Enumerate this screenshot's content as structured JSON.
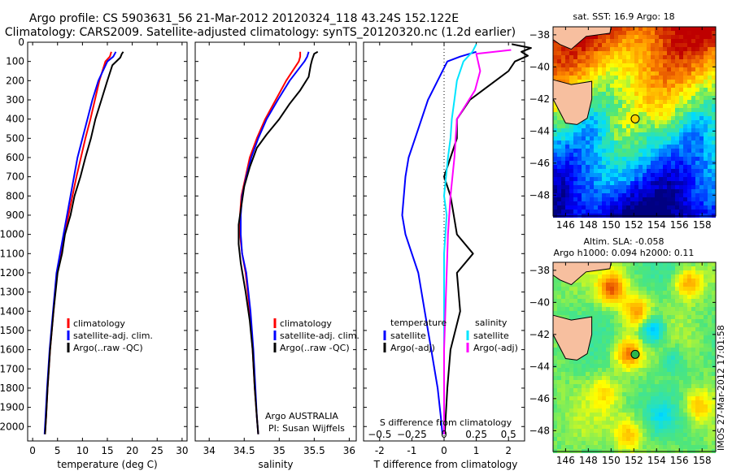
{
  "header": {
    "line1": "Argo profile: CS 5903631_56 21-Mar-2012 20120324_118 43.24S 152.122E",
    "line2": "Climatology: CARS2009. Satellite-adjusted climatology: synTS_20120320.nc (1.2d earlier)"
  },
  "side_stamp": "IMOS 27-Mar-2012 17:01:58",
  "colors": {
    "climatology": "#ff0000",
    "satellite": "#0000ff",
    "argo": "#000000",
    "salinity_satellite": "#00e5ff",
    "salinity_argo": "#ff00ff",
    "zero_line": "#000000"
  },
  "maps": [
    {
      "title": "sat. SST: 16.9 Argo: 18",
      "lon_ticks": [
        146,
        148,
        150,
        152,
        154,
        156,
        158
      ],
      "lat_ticks": [
        -38,
        -40,
        -42,
        -44,
        -46,
        -48
      ],
      "float": {
        "lon": 152.12,
        "lat": -43.24,
        "color": "#ffd700"
      }
    },
    {
      "title_line1": "Altim. SLA: -0.058",
      "title_line2": "Argo h1000: 0.094 h2000: 0.11",
      "lon_ticks": [
        146,
        148,
        150,
        152,
        154,
        156,
        158
      ],
      "lat_ticks": [
        -38,
        -40,
        -42,
        -44,
        -46,
        -48
      ],
      "float": {
        "lon": 152.12,
        "lat": -43.24,
        "color": "#2db84d"
      }
    }
  ],
  "chart_data": [
    {
      "type": "line",
      "xlabel": "temperature (deg C)",
      "xlim": [
        -1,
        31
      ],
      "xticks": [
        0,
        5,
        10,
        15,
        20,
        25,
        30
      ],
      "ylim": [
        2075,
        0
      ],
      "yticks": [
        0,
        100,
        200,
        300,
        400,
        500,
        600,
        700,
        800,
        900,
        1000,
        1100,
        1200,
        1300,
        1400,
        1500,
        1600,
        1700,
        1800,
        1900,
        2000
      ],
      "legend": [
        "climatology",
        "satellite-adj. clim.",
        "Argo(..raw -QC)"
      ],
      "series": [
        {
          "name": "climatology",
          "color": "#ff0000",
          "x": [
            15.8,
            15.5,
            14.6,
            13.4,
            12.5,
            11.6,
            10.6,
            9.7,
            8.8,
            8.0,
            7.2,
            6.4,
            5.7,
            4.9,
            4.2,
            3.5,
            3.0,
            2.7,
            2.5
          ],
          "y": [
            50,
            75,
            100,
            200,
            300,
            400,
            500,
            600,
            700,
            800,
            900,
            1000,
            1100,
            1200,
            1400,
            1600,
            1800,
            1950,
            2040
          ]
        },
        {
          "name": "satellite-adj. clim.",
          "color": "#0000ff",
          "x": [
            16.7,
            16.2,
            15.0,
            13.2,
            12.0,
            11.0,
            10.0,
            9.0,
            8.3,
            7.6,
            6.9,
            6.2,
            5.5,
            4.8,
            4.1,
            3.4,
            2.9,
            2.6,
            2.4
          ],
          "y": [
            50,
            75,
            100,
            200,
            300,
            400,
            500,
            600,
            700,
            800,
            900,
            1000,
            1100,
            1200,
            1400,
            1600,
            1800,
            1950,
            2040
          ]
        },
        {
          "name": "Argo(..raw -QC)",
          "color": "#000000",
          "x": [
            18.2,
            17.9,
            17.6,
            16.0,
            15.0,
            13.8,
            12.6,
            11.7,
            10.6,
            9.6,
            8.4,
            7.6,
            6.5,
            5.9,
            5.0,
            4.2,
            3.5,
            3.0,
            2.7,
            2.5
          ],
          "y": [
            50,
            60,
            80,
            120,
            200,
            300,
            400,
            500,
            600,
            700,
            800,
            900,
            1000,
            1100,
            1200,
            1400,
            1600,
            1800,
            1950,
            2040
          ]
        }
      ]
    },
    {
      "type": "line",
      "xlabel": "salinity",
      "xlim": [
        33.8,
        36.1
      ],
      "xticks": [
        34,
        34.5,
        35,
        35.5,
        36
      ],
      "xtick_labels": [
        "34",
        "34.5",
        "35",
        "35.5",
        "36"
      ],
      "ylim": [
        2075,
        0
      ],
      "legend": [
        "climatology",
        "satellite-adj. clim.",
        "Argo(..raw -QC)"
      ],
      "annotation": [
        "Argo AUSTRALIA",
        "PI: Susan Wijffels"
      ],
      "series": [
        {
          "name": "climatology",
          "color": "#ff0000",
          "x": [
            35.3,
            35.3,
            35.28,
            35.1,
            34.95,
            34.8,
            34.68,
            34.58,
            34.52,
            34.46,
            34.44,
            34.44,
            34.47,
            34.52,
            34.58,
            34.62,
            34.65,
            34.68,
            34.7
          ],
          "y": [
            50,
            75,
            100,
            200,
            300,
            400,
            500,
            600,
            700,
            800,
            900,
            1000,
            1100,
            1200,
            1400,
            1600,
            1800,
            1950,
            2040
          ]
        },
        {
          "name": "satellite-adj. clim.",
          "color": "#0000ff",
          "x": [
            35.42,
            35.4,
            35.36,
            35.15,
            34.98,
            34.82,
            34.7,
            34.6,
            34.53,
            34.47,
            34.45,
            34.45,
            34.47,
            34.53,
            34.59,
            34.63,
            34.66,
            34.68,
            34.7
          ],
          "y": [
            50,
            75,
            100,
            200,
            300,
            400,
            500,
            600,
            700,
            800,
            900,
            1000,
            1100,
            1200,
            1400,
            1600,
            1800,
            1950,
            2040
          ]
        },
        {
          "name": "Argo(..raw -QC)",
          "color": "#000000",
          "x": [
            35.55,
            35.5,
            35.47,
            35.45,
            35.42,
            35.3,
            35.15,
            35.0,
            34.82,
            34.68,
            34.58,
            34.5,
            34.46,
            34.42,
            34.42,
            34.45,
            34.52,
            34.58,
            34.62,
            34.65,
            34.68,
            34.7
          ],
          "y": [
            50,
            60,
            90,
            120,
            180,
            250,
            320,
            400,
            480,
            550,
            650,
            750,
            850,
            950,
            1050,
            1150,
            1300,
            1450,
            1600,
            1800,
            1950,
            2040
          ]
        }
      ]
    },
    {
      "type": "line",
      "xlabel": "T difference from climatology",
      "xlabel_top": "S difference from climatology",
      "xlim": [
        -2.5,
        2.5
      ],
      "xticks_bottom": [
        -2,
        -1,
        0,
        1,
        2
      ],
      "xticks_top": [
        -0.5,
        -0.25,
        0,
        0.25,
        0.5
      ],
      "xtick_top_labels": [
        "−0.5",
        "−0.25",
        "0",
        "0.25",
        "0.5"
      ],
      "ylim": [
        2075,
        0
      ],
      "legend_left_title": "temperature",
      "legend_left": [
        "satellite",
        "Argo(-adj)"
      ],
      "legend_right_title": "salinity",
      "legend_right": [
        "satellite",
        "Argo(-adj)"
      ],
      "series": [
        {
          "name": "satellite",
          "group": "temperature",
          "color": "#0000ff",
          "x": [
            1.0,
            0.5,
            0.1,
            -0.2,
            -0.5,
            -0.7,
            -0.9,
            -1.1,
            -1.2,
            -1.25,
            -1.3,
            -1.2,
            -1.0,
            -0.8,
            -0.6,
            -0.4,
            -0.2,
            -0.1,
            -0.05
          ],
          "y": [
            50,
            75,
            100,
            200,
            300,
            400,
            500,
            600,
            700,
            800,
            900,
            1000,
            1100,
            1200,
            1400,
            1600,
            1800,
            1950,
            2040
          ]
        },
        {
          "name": "Argo(-adj)",
          "group": "temperature",
          "color": "#000000",
          "x": [
            2.1,
            2.7,
            2.4,
            2.6,
            2.2,
            2.0,
            1.6,
            1.2,
            0.8,
            0.4,
            0.4,
            0.2,
            0.0,
            0.1,
            0.2,
            0.3,
            0.4,
            0.9,
            0.4,
            0.5,
            0.2,
            0.1,
            0.05,
            0.02
          ],
          "y": [
            10,
            30,
            50,
            70,
            100,
            150,
            200,
            250,
            300,
            400,
            500,
            600,
            700,
            750,
            800,
            900,
            1000,
            1100,
            1200,
            1400,
            1600,
            1800,
            1950,
            2040
          ]
        },
        {
          "name": "satellite",
          "group": "salinity",
          "color": "#00e5ff",
          "x": [
            0.25,
            0.22,
            0.15,
            0.1,
            0.08,
            0.06,
            0.05,
            0.03,
            0.0,
            0.02,
            0.01,
            0.0,
            0.0,
            0.0,
            0.0,
            0.0,
            0.0,
            0.0
          ],
          "y": [
            10,
            50,
            100,
            200,
            300,
            400,
            500,
            600,
            800,
            900,
            1000,
            1100,
            1200,
            1400,
            1600,
            1800,
            1950,
            2040
          ]
        },
        {
          "name": "Argo(-adj)",
          "group": "salinity",
          "color": "#ff00ff",
          "x": [
            0.52,
            0.25,
            0.28,
            0.24,
            0.1,
            0.08,
            0.05,
            0.03,
            0.02,
            0.01,
            0.0,
            0.0,
            0.0
          ],
          "y": [
            40,
            60,
            150,
            250,
            400,
            600,
            800,
            1000,
            1200,
            1400,
            1600,
            1800,
            2040
          ]
        }
      ]
    }
  ]
}
